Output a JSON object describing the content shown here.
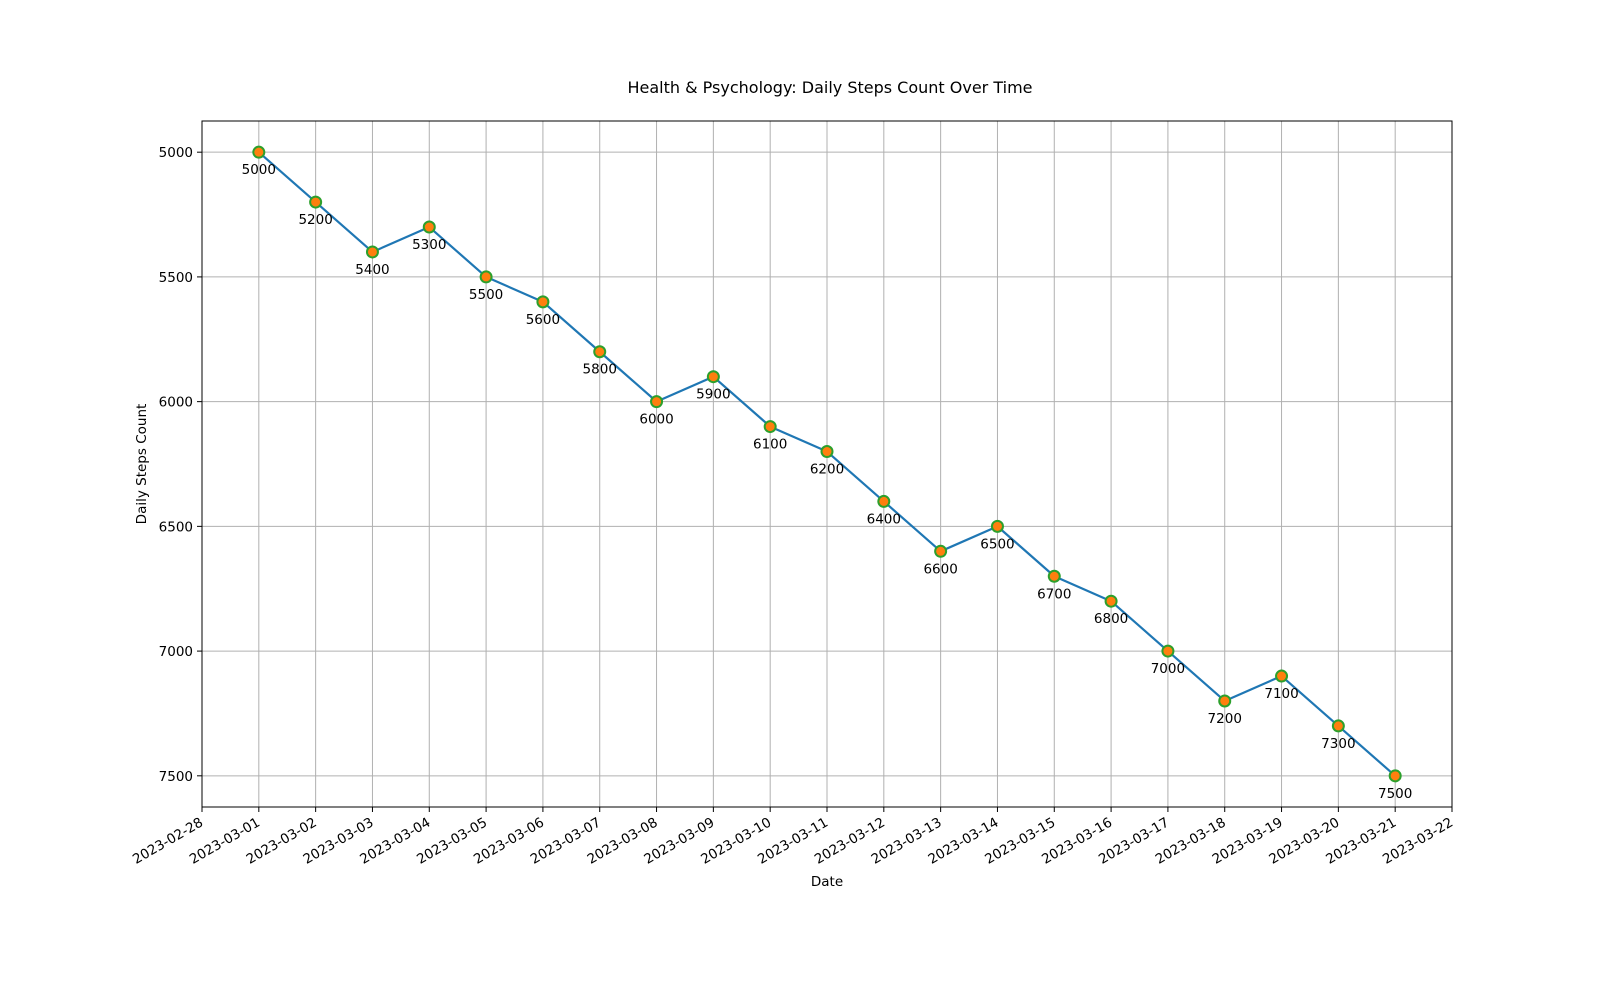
{
  "chart_data": {
    "type": "line",
    "title": "Health & Psychology: Daily Steps Count Over Time",
    "xlabel": "Date",
    "ylabel": "Daily Steps Count",
    "x_ticks": [
      "2023-02-28",
      "2023-03-01",
      "2023-03-02",
      "2023-03-03",
      "2023-03-04",
      "2023-03-05",
      "2023-03-06",
      "2023-03-07",
      "2023-03-08",
      "2023-03-09",
      "2023-03-10",
      "2023-03-11",
      "2023-03-12",
      "2023-03-13",
      "2023-03-14",
      "2023-03-15",
      "2023-03-16",
      "2023-03-17",
      "2023-03-18",
      "2023-03-19",
      "2023-03-20",
      "2023-03-21",
      "2023-03-22"
    ],
    "y_ticks": [
      5000,
      5500,
      6000,
      6500,
      7000,
      7500
    ],
    "ylim": [
      7625,
      4875
    ],
    "y_inverted": true,
    "grid": true,
    "line_color": "#1f77b4",
    "marker_face_color": "#ff7f0e",
    "marker_edge_color": "#2ca02c",
    "series": [
      {
        "x": [
          "2023-03-01",
          "2023-03-02",
          "2023-03-03",
          "2023-03-04",
          "2023-03-05",
          "2023-03-06",
          "2023-03-07",
          "2023-03-08",
          "2023-03-09",
          "2023-03-10",
          "2023-03-11",
          "2023-03-12",
          "2023-03-13",
          "2023-03-14",
          "2023-03-15",
          "2023-03-16",
          "2023-03-17",
          "2023-03-18",
          "2023-03-19",
          "2023-03-20",
          "2023-03-21"
        ],
        "values": [
          5000,
          5200,
          5400,
          5300,
          5500,
          5600,
          5800,
          6000,
          5900,
          6100,
          6200,
          6400,
          6600,
          6500,
          6700,
          6800,
          7000,
          7200,
          7100,
          7300,
          7500
        ]
      }
    ]
  }
}
